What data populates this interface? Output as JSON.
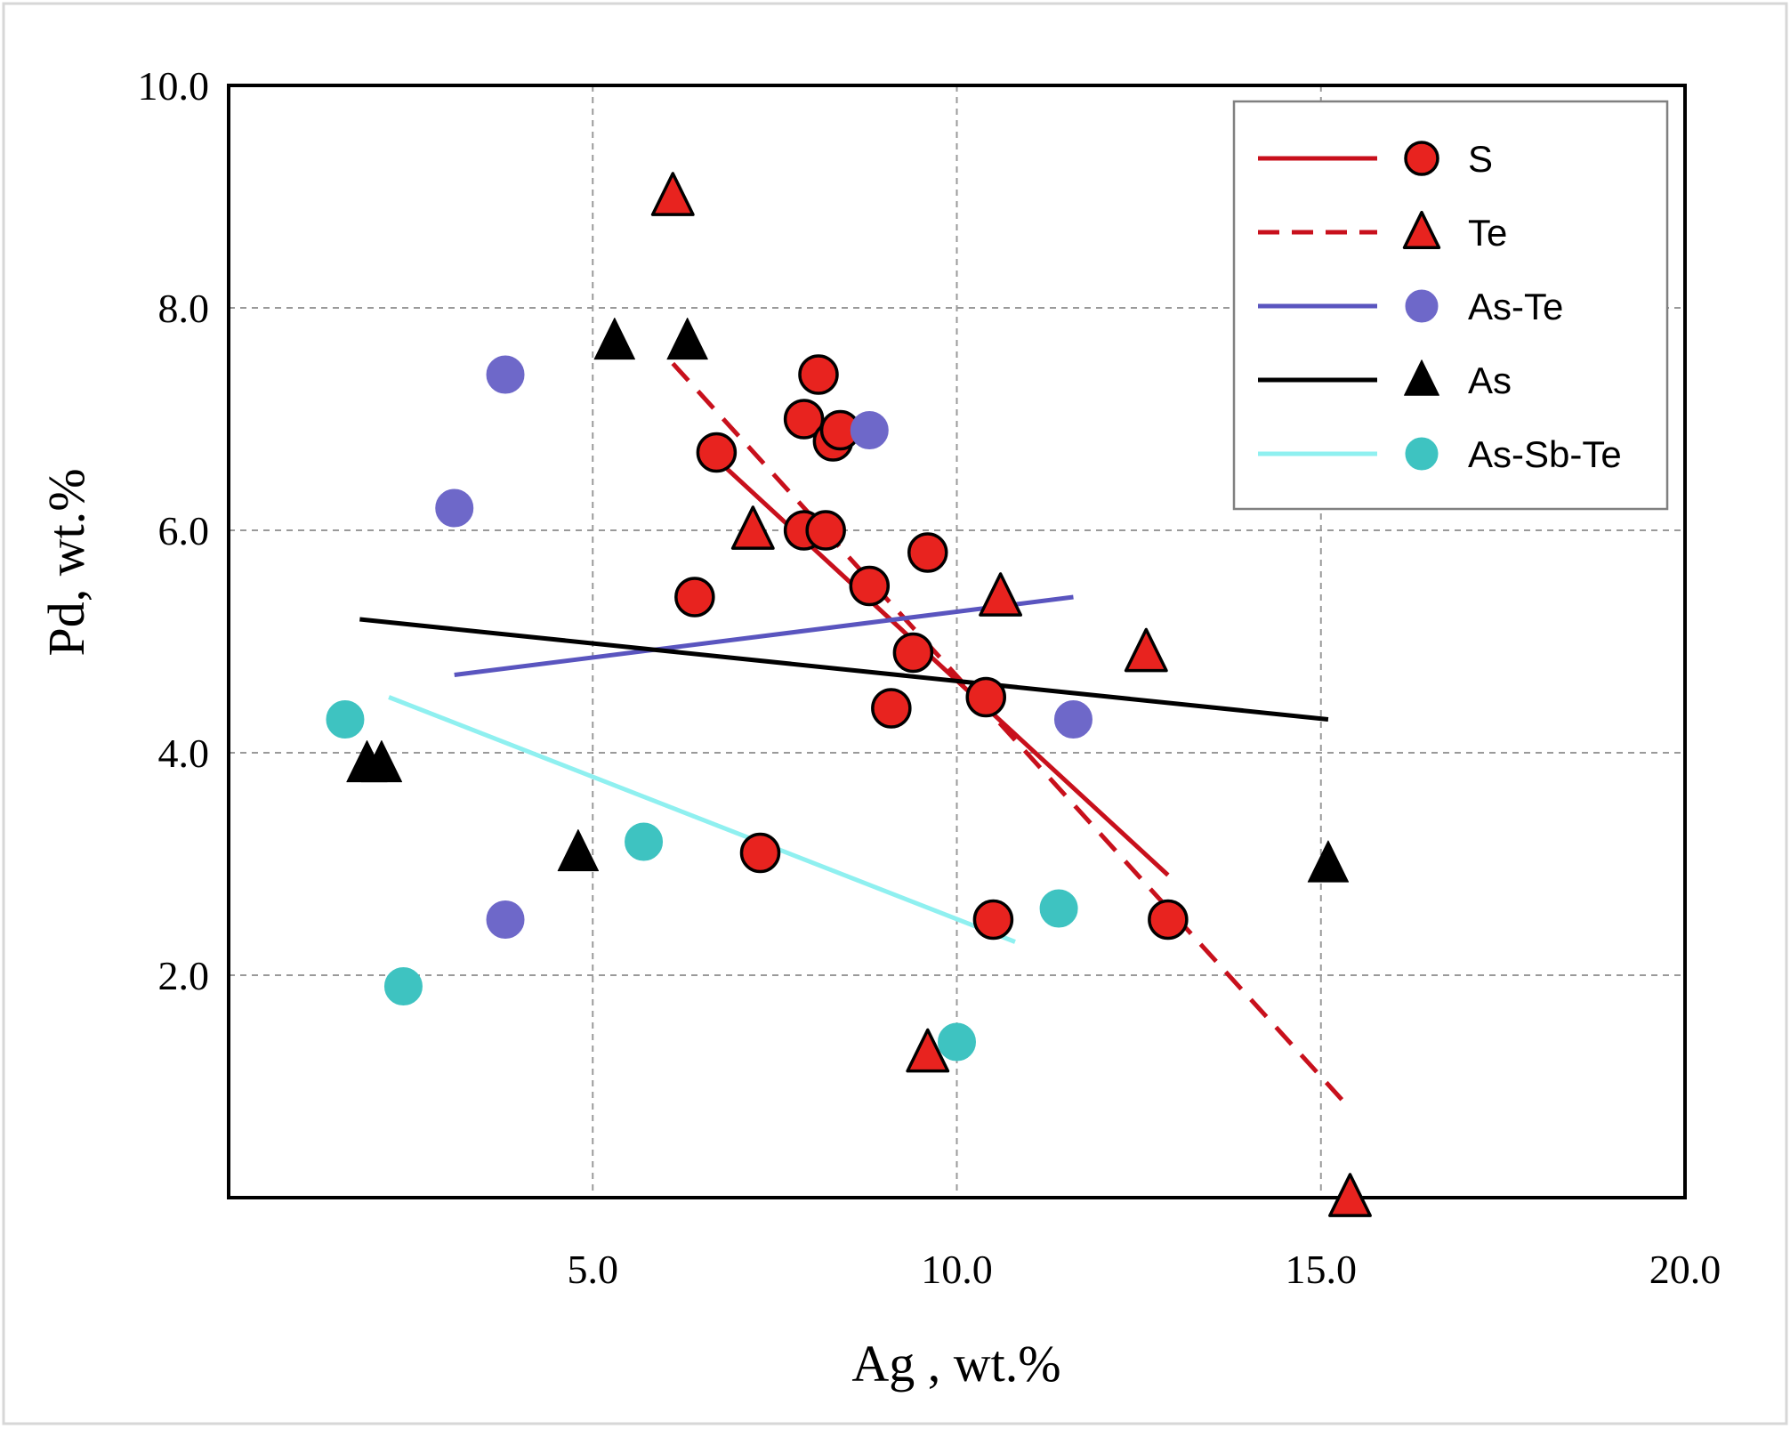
{
  "chart_data": {
    "type": "scatter",
    "title": "",
    "xlabel": "Ag , wt.%",
    "ylabel": "Pd, wt.%",
    "xlim": [
      0,
      20
    ],
    "ylim": [
      0,
      10
    ],
    "xticks": [
      5,
      10,
      15,
      20
    ],
    "yticks": [
      2,
      4,
      6,
      8,
      10
    ],
    "xtick_labels": [
      "5.0",
      "10.0",
      "15.0",
      "20.0"
    ],
    "ytick_labels": [
      "2.0",
      "4.0",
      "6.0",
      "8.0",
      "10.0"
    ],
    "grid": true,
    "legend_position": "top-right",
    "series": [
      {
        "name": "S",
        "marker": "circle",
        "color": "#e8231f",
        "marker_stroke": "#000000",
        "line_style": "solid",
        "line_color": "#c8101c",
        "points": [
          [
            6.7,
            6.7
          ],
          [
            7.9,
            7.0
          ],
          [
            8.1,
            7.4
          ],
          [
            8.3,
            6.8
          ],
          [
            8.4,
            6.9
          ],
          [
            7.9,
            6.0
          ],
          [
            8.2,
            6.0
          ],
          [
            8.8,
            5.5
          ],
          [
            9.6,
            5.8
          ],
          [
            6.4,
            5.4
          ],
          [
            9.4,
            4.9
          ],
          [
            10.4,
            4.5
          ],
          [
            9.1,
            4.4
          ],
          [
            7.3,
            3.1
          ],
          [
            10.5,
            2.5
          ],
          [
            12.9,
            2.5
          ]
        ],
        "trend": [
          [
            6.6,
            6.7
          ],
          [
            12.9,
            2.9
          ]
        ]
      },
      {
        "name": "Te",
        "marker": "triangle",
        "color": "#e8231f",
        "marker_stroke": "#000000",
        "line_style": "dashed",
        "line_color": "#c8101c",
        "points": [
          [
            6.1,
            9.0
          ],
          [
            7.2,
            6.0
          ],
          [
            10.6,
            5.4
          ],
          [
            12.6,
            4.9
          ],
          [
            9.6,
            1.3
          ],
          [
            15.4,
            0.0
          ]
        ],
        "trend": [
          [
            6.1,
            7.5
          ],
          [
            15.4,
            0.8
          ]
        ]
      },
      {
        "name": "As-Te",
        "marker": "circle",
        "color": "#6e68c9",
        "marker_stroke": "#6e68c9",
        "line_style": "solid",
        "line_color": "#5a55bf",
        "points": [
          [
            3.8,
            7.4
          ],
          [
            3.1,
            6.2
          ],
          [
            8.8,
            6.9
          ],
          [
            11.6,
            4.3
          ],
          [
            3.8,
            2.5
          ]
        ],
        "trend": [
          [
            3.1,
            4.7
          ],
          [
            11.6,
            5.4
          ]
        ]
      },
      {
        "name": "As",
        "marker": "triangle",
        "color": "#000000",
        "marker_stroke": "#000000",
        "line_style": "solid",
        "line_color": "#000000",
        "points": [
          [
            5.3,
            7.7
          ],
          [
            6.3,
            7.7
          ],
          [
            1.9,
            3.9
          ],
          [
            2.1,
            3.9
          ],
          [
            4.8,
            3.1
          ],
          [
            15.1,
            3.0
          ]
        ],
        "trend": [
          [
            1.8,
            5.2
          ],
          [
            15.1,
            4.3
          ]
        ]
      },
      {
        "name": "As-Sb-Te",
        "marker": "circle",
        "color": "#3ec3c1",
        "marker_stroke": "#3ec3c1",
        "line_style": "solid",
        "line_color": "#8ff0f0",
        "points": [
          [
            1.6,
            4.3
          ],
          [
            5.7,
            3.2
          ],
          [
            11.4,
            2.6
          ],
          [
            2.4,
            1.9
          ],
          [
            10.0,
            1.4
          ]
        ],
        "trend": [
          [
            2.2,
            4.5
          ],
          [
            10.8,
            2.3
          ]
        ]
      }
    ]
  }
}
